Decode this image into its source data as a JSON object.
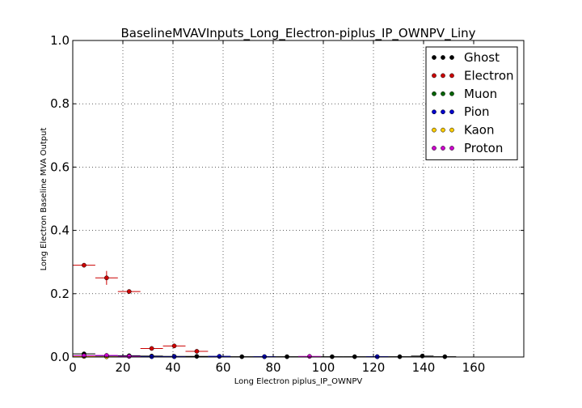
{
  "chart_data": {
    "type": "scatter",
    "title": "BaselineMVAVInputs_Long_Electron-piplus_IP_OWNPV_Liny",
    "xlabel": "Long Electron piplus_IP_OWNPV",
    "ylabel": "Long Electron Baseline MVA Output",
    "xlim": [
      0,
      180
    ],
    "ylim": [
      0,
      1.0
    ],
    "xticks": [
      "0",
      "20",
      "40",
      "60",
      "80",
      "100",
      "120",
      "140",
      "160"
    ],
    "yticks": [
      "0.0",
      "0.2",
      "0.4",
      "0.6",
      "0.8",
      "1.0"
    ],
    "grid": true,
    "legend_position": "top-right",
    "series": [
      {
        "name": "Ghost",
        "color": "#000000",
        "x": [
          4.5,
          13.5,
          22.5,
          31.5,
          40.5,
          49.5,
          58.5,
          67.5,
          76.5,
          85.5,
          103.5,
          112.5,
          121.5,
          130.5,
          139.5,
          148.5
        ],
        "y": [
          0.01,
          0.004,
          0.004,
          0.003,
          0.002,
          0.002,
          0.002,
          0.001,
          0.001,
          0.001,
          0.001,
          0.001,
          0.001,
          0.001,
          0.003,
          0.001
        ],
        "yerr": [
          0.003,
          0.002,
          0.002,
          0.002,
          0.001,
          0.001,
          0.001,
          0.001,
          0.001,
          0.001,
          0.001,
          0.001,
          0.001,
          0.001,
          0.002,
          0.001
        ]
      },
      {
        "name": "Electron",
        "color": "#cc0000",
        "x": [
          4.5,
          13.5,
          22.5,
          31.5,
          40.5,
          49.5
        ],
        "y": [
          0.29,
          0.25,
          0.207,
          0.027,
          0.035,
          0.018
        ],
        "yerr": [
          0.004,
          0.022,
          0.006,
          0.003,
          0.004,
          0.003
        ]
      },
      {
        "name": "Muon",
        "color": "#006400",
        "x": [
          4.5,
          13.5
        ],
        "y": [
          0.002,
          0.001
        ],
        "yerr": [
          0.001,
          0.001
        ]
      },
      {
        "name": "Pion",
        "color": "#0000cc",
        "x": [
          4.5,
          13.5,
          22.5,
          31.5,
          40.5,
          58.5,
          76.5,
          121.5
        ],
        "y": [
          0.003,
          0.002,
          0.002,
          0.001,
          0.001,
          0.002,
          0.001,
          0.001
        ],
        "yerr": [
          0.001,
          0.001,
          0.001,
          0.001,
          0.001,
          0.001,
          0.001,
          0.001
        ]
      },
      {
        "name": "Kaon",
        "color": "#ffcc00",
        "x": [
          4.5,
          13.5
        ],
        "y": [
          0.002,
          0.001
        ],
        "yerr": [
          0.001,
          0.001
        ]
      },
      {
        "name": "Proton",
        "color": "#cc00cc",
        "x": [
          4.5,
          13.5,
          22.5,
          94.5
        ],
        "y": [
          0.004,
          0.005,
          0.002,
          0.002
        ],
        "yerr": [
          0.002,
          0.002,
          0.001,
          0.001
        ]
      }
    ]
  }
}
